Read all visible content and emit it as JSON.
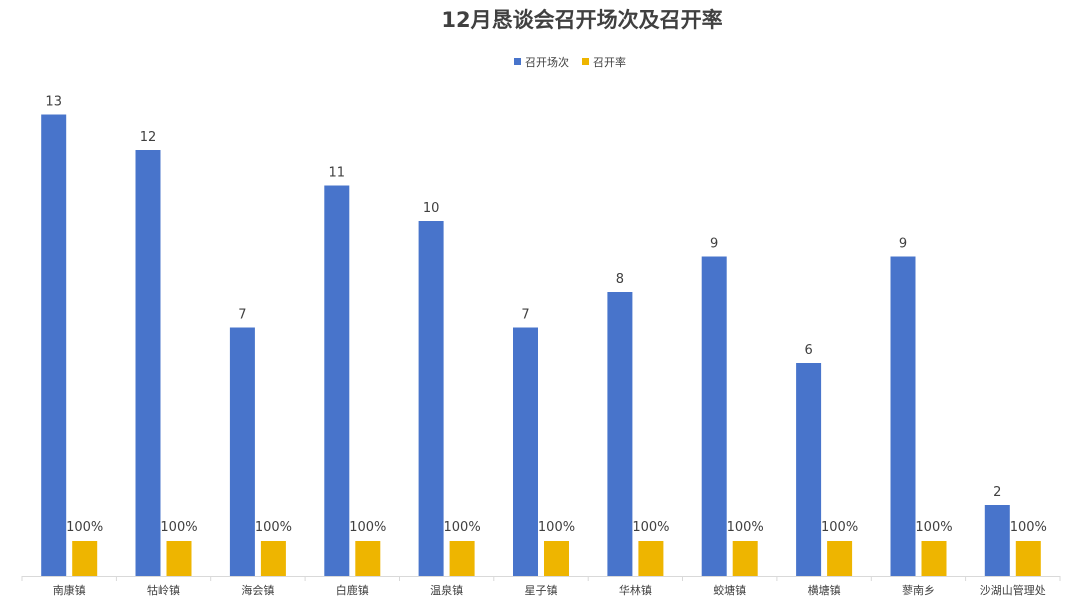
{
  "chart_data": {
    "type": "bar",
    "title": "12月恳谈会召开场次及召开率",
    "xlabel": "",
    "ylabel": "",
    "grid": false,
    "legend_position": "top",
    "categories": [
      "南康镇",
      "牯岭镇",
      "海会镇",
      "白鹿镇",
      "温泉镇",
      "星子镇",
      "华林镇",
      "蛟塘镇",
      "横塘镇",
      "蓼南乡",
      "沙湖山管理处"
    ],
    "series": [
      {
        "name": "召开场次",
        "color": "#4874CB",
        "values": [
          13,
          12,
          7,
          11,
          10,
          7,
          8,
          9,
          6,
          9,
          2
        ],
        "labels": [
          "13",
          "12",
          "7",
          "11",
          "10",
          "7",
          "8",
          "9",
          "6",
          "9",
          "2"
        ]
      },
      {
        "name": "召开率",
        "color": "#EEB500",
        "values": [
          1,
          1,
          1,
          1,
          1,
          1,
          1,
          1,
          1,
          1,
          1
        ],
        "labels": [
          "100%",
          "100%",
          "100%",
          "100%",
          "100%",
          "100%",
          "100%",
          "100%",
          "100%",
          "100%",
          "100%"
        ]
      }
    ],
    "ylim": [
      0,
      13
    ]
  },
  "colors": {
    "axis": "#D9D9D9",
    "text": "#404040"
  }
}
